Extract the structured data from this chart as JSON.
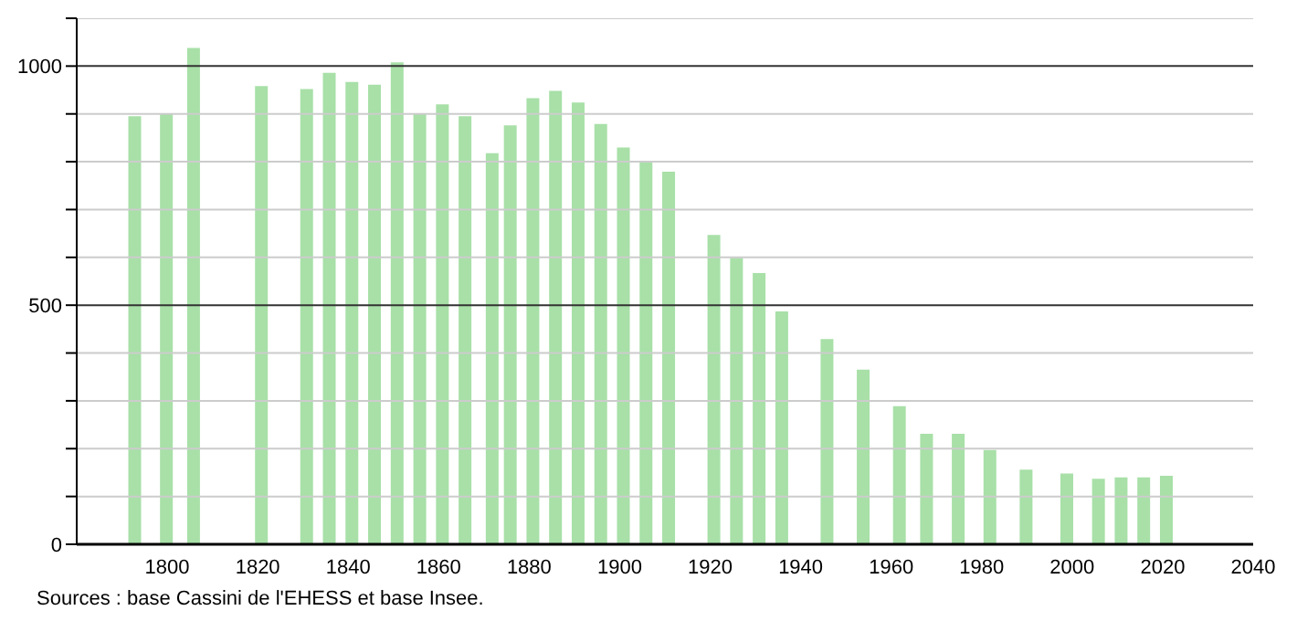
{
  "chart_data": {
    "type": "bar",
    "x": [
      1793,
      1800,
      1806,
      1821,
      1831,
      1836,
      1841,
      1846,
      1851,
      1856,
      1861,
      1866,
      1872,
      1876,
      1881,
      1886,
      1891,
      1896,
      1901,
      1906,
      1911,
      1921,
      1926,
      1931,
      1936,
      1946,
      1954,
      1962,
      1968,
      1975,
      1982,
      1990,
      1999,
      2006,
      2011,
      2016,
      2021
    ],
    "values": [
      895,
      901,
      1038,
      958,
      952,
      986,
      967,
      961,
      1008,
      901,
      920,
      895,
      818,
      876,
      933,
      948,
      924,
      879,
      830,
      799,
      779,
      647,
      599,
      567,
      487,
      429,
      365,
      289,
      231,
      231,
      197,
      156,
      148,
      137,
      140,
      140,
      143
    ],
    "color": "#a8e0a8",
    "xlim": [
      1780,
      2040
    ],
    "xticks": [
      1800,
      1820,
      1840,
      1860,
      1880,
      1900,
      1920,
      1940,
      1960,
      1980,
      2000,
      2020,
      2040
    ],
    "ylim": [
      0,
      1100
    ],
    "yticks": [
      0,
      {
        "value": 100,
        "label": null
      },
      {
        "value": 200,
        "label": null
      },
      {
        "value": 300,
        "label": null
      },
      {
        "value": 400,
        "label": null
      },
      500,
      {
        "value": 600,
        "label": null
      },
      {
        "value": 700,
        "label": null
      },
      {
        "value": 800,
        "label": null
      },
      {
        "value": 900,
        "label": null
      },
      1000,
      {
        "value": 1100,
        "label": null
      }
    ],
    "grid": "y",
    "annotations": [
      "Sources : base Cassini de l'EHESS et base Insee."
    ]
  }
}
